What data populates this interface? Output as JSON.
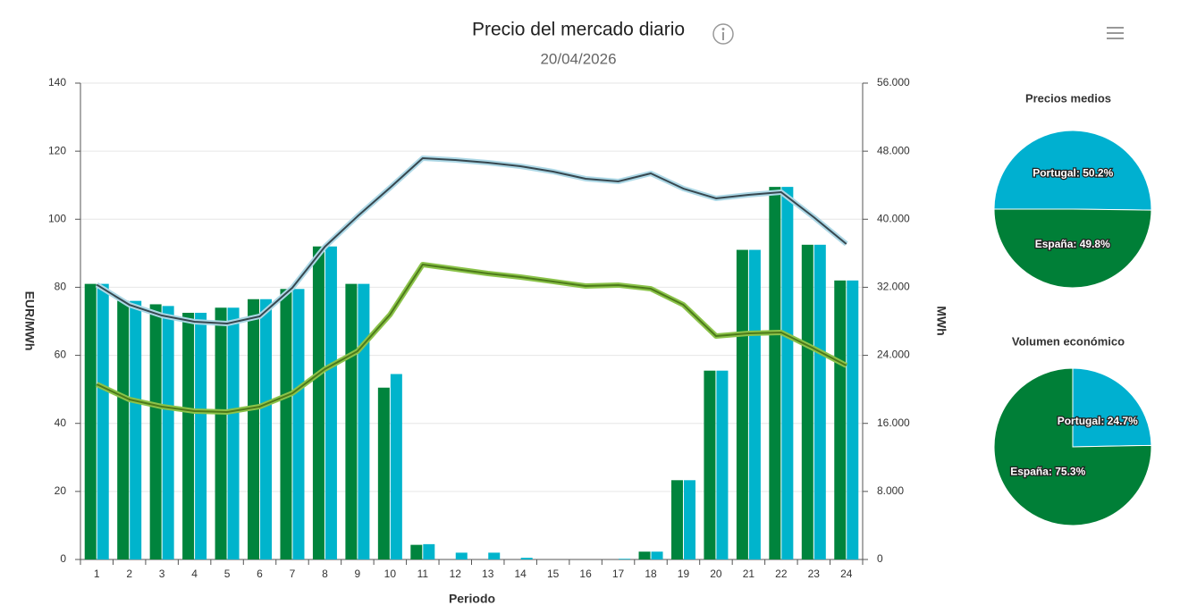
{
  "chart_data": [
    {
      "type": "bar",
      "title": "Precio del mercado diario",
      "subtitle": "20/04/2026",
      "xlabel": "Periodo",
      "ylabel": "EUR/MWh",
      "y2label": "MWh",
      "categories": [
        "1",
        "2",
        "3",
        "4",
        "5",
        "6",
        "7",
        "8",
        "9",
        "10",
        "11",
        "12",
        "13",
        "14",
        "15",
        "16",
        "17",
        "18",
        "19",
        "20",
        "21",
        "22",
        "23",
        "24"
      ],
      "series": [
        {
          "type": "bar",
          "color": "#00843d",
          "values": [
            81,
            76,
            75,
            72.5,
            74,
            76.5,
            79.5,
            92,
            81,
            50.5,
            4.3,
            0,
            0,
            0,
            0,
            0,
            0,
            2.3,
            23.3,
            55.5,
            91,
            109.5,
            92.5,
            82
          ]
        },
        {
          "type": "bar",
          "color": "#00b4cc",
          "values": [
            81,
            76,
            74.5,
            72.5,
            74,
            76.5,
            79.5,
            92,
            81,
            54.5,
            4.5,
            2,
            2,
            0.5,
            0,
            0,
            0.2,
            2.3,
            23.3,
            55.5,
            91,
            109.5,
            92.5,
            82
          ]
        },
        {
          "type": "line",
          "axis": "y2",
          "color": "#37474f",
          "outline_color": "#add8e6",
          "values": [
            32300,
            29940,
            28680,
            27950,
            27740,
            28580,
            31940,
            36770,
            40340,
            43710,
            47170,
            46960,
            46650,
            46230,
            45600,
            44760,
            44440,
            45390,
            43600,
            42450,
            42870,
            43180,
            40240,
            37090
          ]
        },
        {
          "type": "line",
          "axis": "y2",
          "color": "#4d7a1a",
          "outline_color": "#8bc34a",
          "values": [
            20590,
            18810,
            17970,
            17440,
            17340,
            17970,
            19540,
            22380,
            24480,
            28790,
            34670,
            34150,
            33620,
            33200,
            32680,
            32150,
            32260,
            31830,
            29940,
            26270,
            26580,
            26690,
            24800,
            22800
          ]
        }
      ],
      "ylim": [
        0,
        140
      ],
      "yticks": [
        0,
        20,
        40,
        60,
        80,
        100,
        120,
        140
      ],
      "y2lim": [
        0,
        56000
      ],
      "y2ticks": [
        0,
        {
          "value": 8000,
          "label": "8.000"
        },
        {
          "value": 16000,
          "label": "16.000"
        },
        {
          "value": 24000,
          "label": "24.000"
        },
        {
          "value": 32000,
          "label": "32.000"
        },
        {
          "value": 40000,
          "label": "40.000"
        },
        {
          "value": 48000,
          "label": "48.000"
        },
        {
          "value": 56000,
          "label": "56.000"
        }
      ],
      "grid": true
    },
    {
      "type": "pie",
      "title": "Precios medios",
      "categories": [
        "Portugal",
        "España"
      ],
      "values": [
        50.2,
        49.8
      ],
      "value_labels": [
        "Portugal: 50.2%",
        "España: 49.8%"
      ],
      "colors": [
        "#00b0d0",
        "#007f37"
      ]
    },
    {
      "type": "pie",
      "title": "Volumen económico",
      "categories": [
        "Portugal",
        "España"
      ],
      "values": [
        24.7,
        75.3
      ],
      "value_labels": [
        "Portugal: 24.7%",
        "España: 75.3%"
      ],
      "colors": [
        "#00b0d0",
        "#007f37"
      ]
    }
  ]
}
